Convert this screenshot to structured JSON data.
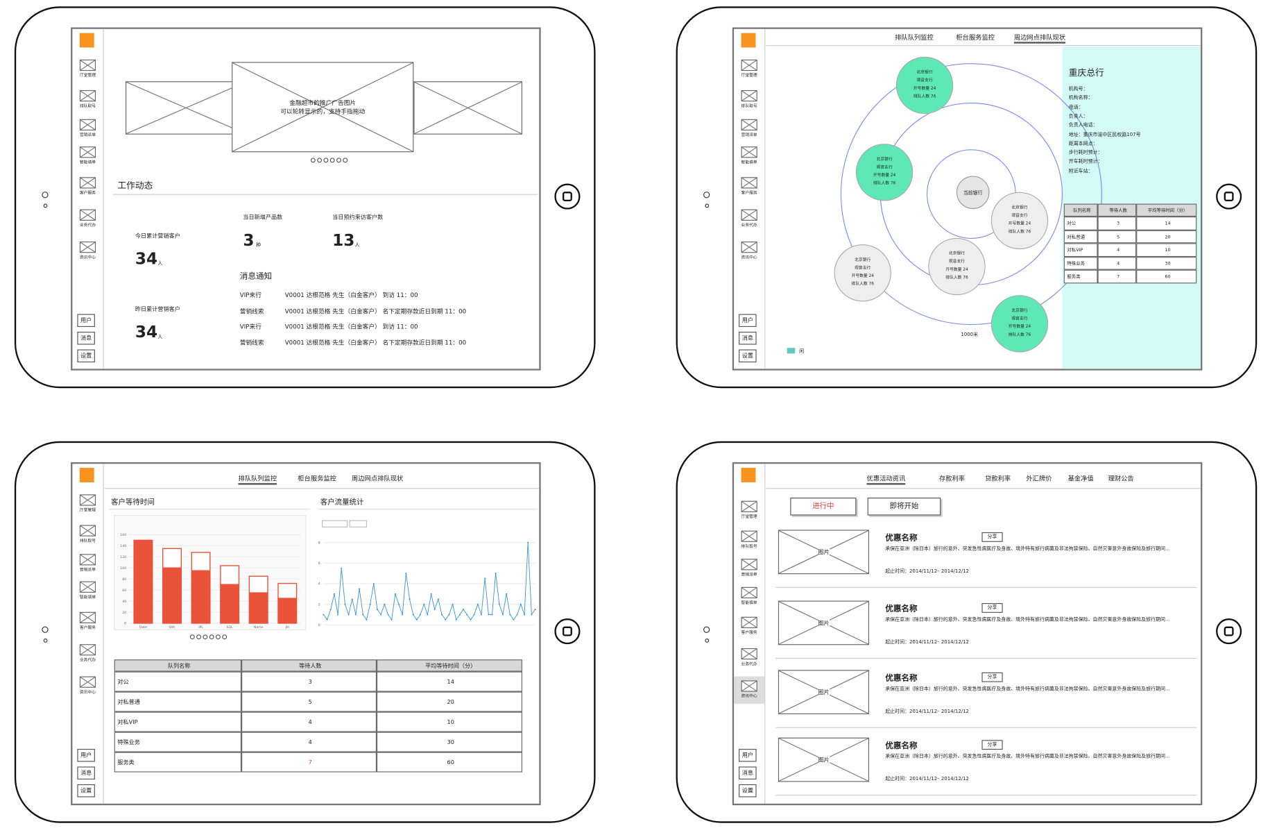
{
  "sidebar": {
    "items": [
      "厅堂管理",
      "排队取号",
      "营销派单",
      "智能填单",
      "客户服务",
      "业务代办",
      "资讯中心"
    ],
    "bottom": [
      "用户",
      "消息",
      "设置"
    ],
    "logo_color": "#f7931e"
  },
  "screen1": {
    "banner": [
      "金融超市的推广广告图片",
      "可以轮转显示的，支持手指拖动"
    ],
    "section_title": "工作动态",
    "stats": [
      {
        "label": "今日累计营销客户",
        "value": 34,
        "unit": "人"
      },
      {
        "label": "昨日累计营销客户",
        "value": 34,
        "unit": "人"
      },
      {
        "label": "当日新增产品数",
        "value": 3,
        "unit": "种"
      },
      {
        "label": "当日预约来访客户数",
        "value": 13,
        "unit": "人"
      }
    ],
    "messages_title": "消息通知",
    "messages": [
      [
        "VIP来行",
        "V0001 达根范格 先生（白金客户） 到访 11：00"
      ],
      [
        "营销线索",
        "V0001 达根范格 先生（白金客户） 名下定期存款近日到期 11：00"
      ],
      [
        "VIP来行",
        "V0001 达根范格 先生（白金客户） 到访 11：00"
      ],
      [
        "营销线索",
        "V0001 达根范格 先生（白金客户） 名下定期存款近日到期 11：00"
      ]
    ]
  },
  "screen2": {
    "tabs": [
      "排队队列监控",
      "柜台服务监控",
      "周边网点排队现状"
    ],
    "active_tab": 2,
    "center": "当前银行",
    "bubbles": [
      {
        "lines": [
          "北京银行",
          "观音支行",
          "开号数量 24",
          "排队人数 76"
        ],
        "color": "#5ee8b5"
      },
      {
        "lines": [
          "北京银行",
          "观音支行",
          "开号数量 24",
          "排队人数 76"
        ],
        "color": "#5ee8b5"
      },
      {
        "lines": [
          "北京银行",
          "观音支行",
          "开号数量 24",
          "排队人数 76"
        ],
        "color": "#eeeeee"
      },
      {
        "lines": [
          "北京银行",
          "观音支行",
          "开号数量 24",
          "排队人数 76"
        ],
        "color": "#eeeeee"
      },
      {
        "lines": [
          "北京银行",
          "观音支行",
          "开号数量 24",
          "排队人数 76"
        ],
        "color": "#eeeeee"
      },
      {
        "lines": [
          "北京银行",
          "观音支行",
          "开号数量 24",
          "排队人数 76"
        ],
        "color": "#5ee8b5"
      }
    ],
    "distance": "1000米",
    "legend": "闲",
    "legend_color": "#5cc8c8",
    "panel": {
      "title": "重庆总行",
      "color": "#d3faf6",
      "fields": [
        "机构号：",
        "机构名称：",
        "电话：",
        "负责人：",
        "负责人电话：",
        "地址：重庆市渝中区民权路107号",
        "距离本网点：",
        "步行耗时预计：",
        "开车耗时预计：",
        "附近车站："
      ]
    },
    "table": {
      "header": [
        "队列名称",
        "等待人数",
        "平均等待时间（分）"
      ],
      "rows": [
        [
          "对公",
          3,
          14
        ],
        [
          "对私普通",
          5,
          20
        ],
        [
          "对私VIP",
          4,
          10
        ],
        [
          "特殊业务",
          4,
          30
        ],
        [
          "服务类",
          7,
          60
        ]
      ]
    }
  },
  "screen3": {
    "tabs": [
      "排队队列监控",
      "柜台服务监控",
      "周边网点排队现状"
    ],
    "active_tab": 0,
    "titles": [
      "客户等待时间",
      "客户流量统计"
    ],
    "chart_data": [
      {
        "type": "bar",
        "categories": [
          "Date",
          "Oth",
          "iPL",
          "SQL",
          "Name",
          "JH"
        ],
        "series": [
          {
            "color": "#e8533a",
            "values": [
              150,
              100,
              95,
              70,
              55,
              45
            ]
          },
          {
            "color": "#ffffff",
            "values": [
              0,
              35,
              33,
              34,
              30,
              27
            ]
          }
        ],
        "ylim": [
          0,
          160
        ],
        "yticks": [
          0,
          20,
          40,
          60,
          80,
          100,
          120,
          140,
          160
        ]
      },
      {
        "type": "line",
        "color": "#3a9ad9",
        "values": [
          1,
          0.5,
          1.5,
          3,
          1,
          5.5,
          2,
          1,
          2.5,
          1,
          3.5,
          1,
          0.5,
          2,
          4,
          1.5,
          1,
          2,
          1,
          0.5,
          3,
          2,
          1,
          5,
          2.5,
          1,
          0.5,
          1,
          2,
          1,
          3,
          1.5,
          2.5,
          1,
          0.5,
          1,
          2,
          0.5,
          1,
          1.5,
          1,
          0.5,
          1,
          2,
          1,
          4.5,
          1,
          1,
          5,
          2,
          1,
          3,
          1,
          0.5,
          1,
          2,
          1,
          8,
          1,
          1.5
        ],
        "ylim": [
          0,
          9
        ],
        "yticks": [
          0,
          2,
          4,
          6,
          8
        ]
      }
    ],
    "table": {
      "header": [
        "队列名称",
        "等待人数",
        "平均等待时间（分）"
      ],
      "rows": [
        [
          "对公",
          3,
          14
        ],
        [
          "对私普通",
          5,
          20
        ],
        [
          "对私VIP",
          4,
          10
        ],
        [
          "特殊业务",
          4,
          30
        ],
        [
          "服务类",
          7,
          60
        ]
      ],
      "highlight": {
        "row": 4,
        "col": 1,
        "color": "#e53935"
      }
    }
  },
  "screen4": {
    "tabs": [
      "优惠活动资讯",
      "存款利率",
      "贷款利率",
      "外汇牌价",
      "基金净值",
      "理财公告"
    ],
    "active_tab": 0,
    "buttons": [
      "进行中",
      "即将开始"
    ],
    "active_color": "#e53935",
    "items": [
      {
        "image": "图片",
        "title": "优惠名称",
        "tag": "分享",
        "desc": "承保在亚洲（除日本）旅行的意外、突发急性病医疗及身故、境外特有旅行病菌及非法拘禁保险、自然灾害意外身故保险及旅行期间...",
        "time": "起止时间：2014/11/12– 2014/12/12"
      },
      {
        "image": "图片",
        "title": "优惠名称",
        "tag": "分享",
        "desc": "承保在亚洲（除日本）旅行的意外、突发急性病医疗及身故、境外特有旅行病菌及非法拘禁保险、自然灾害意外身故保险及旅行期间...",
        "time": "起止时间：2014/11/12– 2014/12/12"
      },
      {
        "image": "图片",
        "title": "优惠名称",
        "tag": "分享",
        "desc": "承保在亚洲（除日本）旅行的意外、突发急性病医疗及身故、境外特有旅行病菌及非法拘禁保险、自然灾害意外身故保险及旅行期间...",
        "time": "起止时间：2014/11/12– 2014/12/12"
      },
      {
        "image": "图片",
        "title": "优惠名称",
        "tag": "分享",
        "desc": "承保在亚洲（除日本）旅行的意外、突发急性病医疗及身故、境外特有旅行病菌及非法拘禁保险、自然灾害意外身故保险及旅行期间...",
        "time": "起止时间：2014/11/12– 2014/12/12"
      }
    ]
  }
}
